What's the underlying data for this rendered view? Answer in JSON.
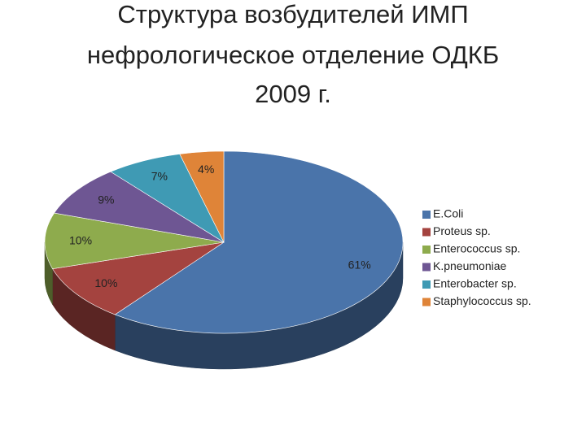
{
  "chart_data": {
    "type": "pie3d",
    "title": [
      "Структура возбудителей ИМП",
      "нефрологическое отделение ОДКБ",
      "2009 г."
    ],
    "categories": [
      "E.Coli",
      "Proteus sp.",
      "Enterococcus sp.",
      "K.pneumoniae",
      "Enterobacter sp.",
      "Staphylococcus sp."
    ],
    "values": [
      61,
      10,
      10,
      9,
      7,
      4
    ],
    "value_labels": [
      "61%",
      "10%",
      "10%",
      "9%",
      "7%",
      "4%"
    ],
    "colors": [
      "#4a74aa",
      "#a4433f",
      "#8eab4d",
      "#6e5693",
      "#3f9ab4",
      "#df8438"
    ]
  }
}
